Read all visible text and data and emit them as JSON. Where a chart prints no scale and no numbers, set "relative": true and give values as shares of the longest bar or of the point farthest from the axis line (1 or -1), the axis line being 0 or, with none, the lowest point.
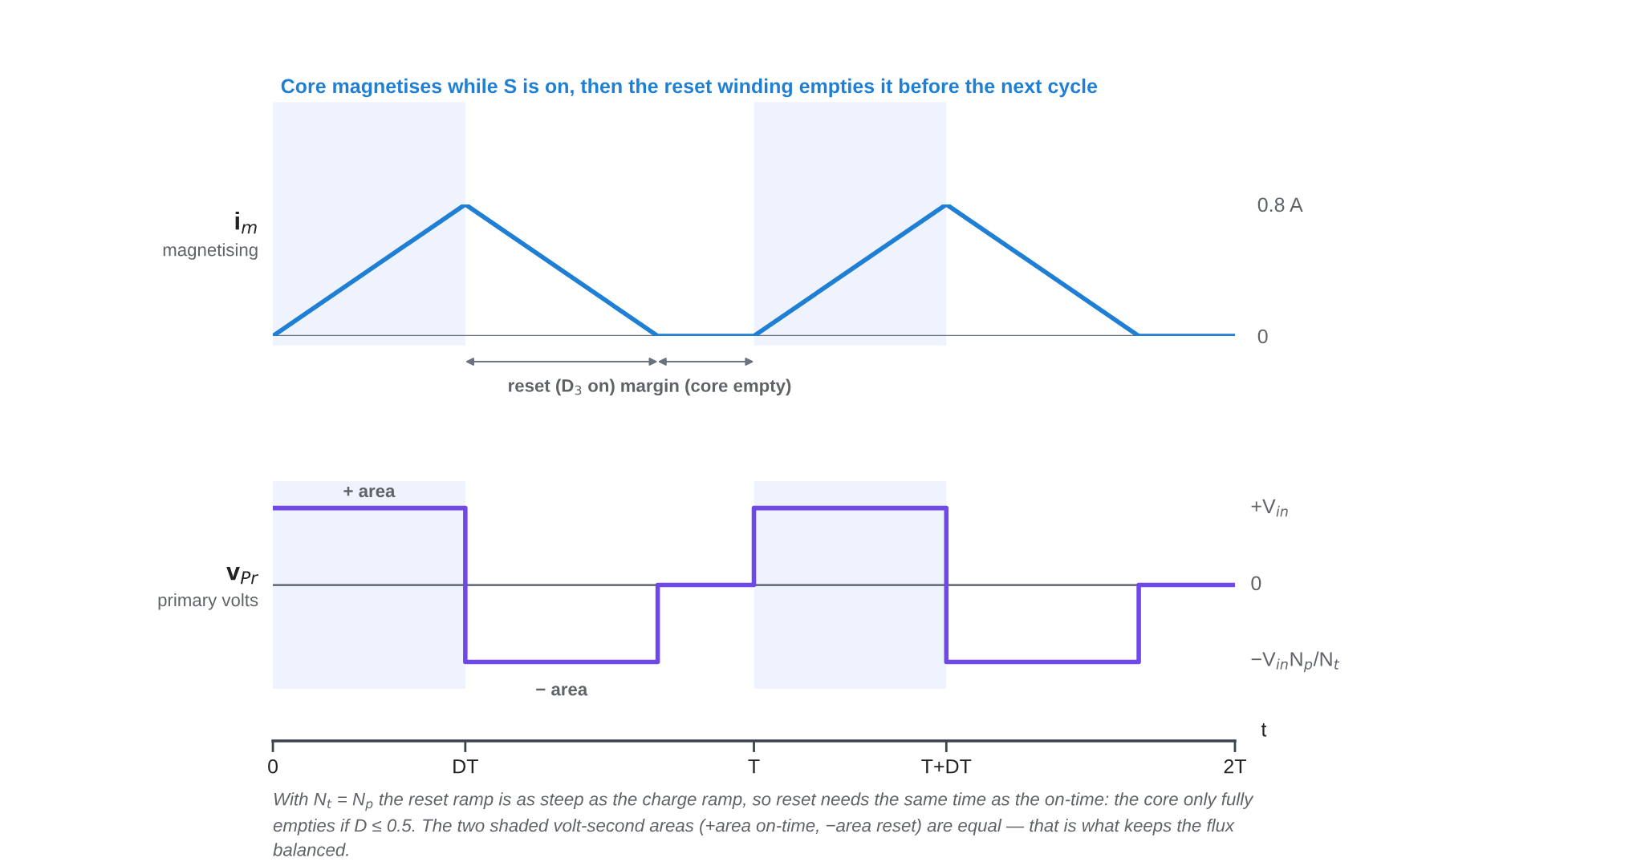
{
  "chart_data": [
    {
      "type": "line",
      "title": "Core magnetises while S is on, then the reset winding empties it before the next cycle",
      "ylabel": "i$_{m}$\nmagnetising",
      "x": [
        0,
        0.4,
        0.8,
        1.0,
        1.4,
        1.8,
        2.0
      ],
      "series": [
        {
          "color": "#1f7fd4",
          "values": [
            0,
            0.8,
            0,
            0,
            0.8,
            0,
            0
          ]
        }
      ],
      "xlim": [
        0,
        2
      ],
      "ylim": [
        0,
        0.8
      ],
      "yticks": [
        {
          "value": 0.8,
          "label": "0.8 A"
        },
        0
      ],
      "tick_labels": "y",
      "grid": false,
      "bands": [
        {
          "axis": "x",
          "from": 0,
          "to": 0.4,
          "color": "#eef3fd"
        },
        {
          "axis": "x",
          "from": 1.0,
          "to": 1.4,
          "color": "#eef3fd"
        }
      ],
      "annotations": [
        "reset (D$_{3}$ on)",
        "margin (core empty)"
      ]
    },
    {
      "type": "step",
      "ylabel": "v$_{Pr}$\nprimary volts",
      "xlabel": "t",
      "relative": true,
      "x": [
        0,
        0.4,
        0.8,
        1.0,
        1.4,
        1.8,
        2.0
      ],
      "series": [
        {
          "color": "#7048e8",
          "values": [
            1,
            -1,
            0,
            1,
            -1,
            0,
            0
          ]
        }
      ],
      "xlim": [
        0,
        2
      ],
      "xticks": [
        0,
        {
          "value": 0.4,
          "label": "DT"
        },
        {
          "value": 1.0,
          "label": "T"
        },
        {
          "value": 1.4,
          "label": "T+DT"
        },
        {
          "value": 2.0,
          "label": "2T"
        }
      ],
      "grid": false,
      "bands": [
        {
          "axis": "x",
          "from": 0,
          "to": 0.4,
          "color": "#eef3fd"
        },
        {
          "axis": "x",
          "from": 1.0,
          "to": 1.4,
          "color": "#eef3fd"
        }
      ],
      "annotations": [
        {
          "text": "+ area",
          "x": 0.2,
          "y": 1
        },
        {
          "text": "− area",
          "x": 0.6,
          "y": -1
        },
        "+V$_{in}$",
        "0",
        "−V$_{in}$N$_{p}$/N$_{t}$",
        "With N$_{t}$ = N$_{p}$ the reset ramp is as steep as the charge ramp, so reset needs the same time as the on-time: the core only fully empties if D ≤ 0.5. The two shaded volt-second areas (+area on-time, −area reset) are equal — that is what keeps the flux balanced."
      ]
    }
  ]
}
